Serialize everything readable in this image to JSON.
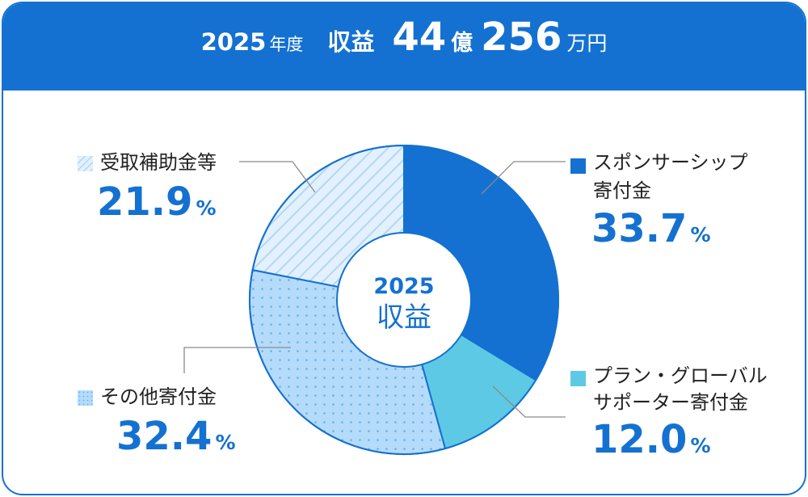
{
  "header": {
    "year": "2025",
    "year_unit": "年度",
    "label": "収益",
    "oku_value": "44",
    "oku_unit": "億",
    "man_value": "256",
    "man_unit": "万円"
  },
  "colors": {
    "brand_blue": "#1471d1",
    "sponsor": "#1471d1",
    "plan_global": "#5ec9e5",
    "other_donation": "#b5dbfb",
    "grants": "#e3f1fd"
  },
  "chart_data": {
    "type": "pie",
    "title": "2025年度 収益 44億256万円",
    "center_label": {
      "year": "2025",
      "label": "収益"
    },
    "unit": "%",
    "slices": [
      {
        "name": "スポンサーシップ寄付金",
        "value": 33.7,
        "color": "#1471d1",
        "pattern": "solid"
      },
      {
        "name": "プラン・グローバルサポーター寄付金",
        "value": 12.0,
        "color": "#5ec9e5",
        "pattern": "solid"
      },
      {
        "name": "その他寄付金",
        "value": 32.4,
        "color": "#b5dbfb",
        "pattern": "dots"
      },
      {
        "name": "受取補助金等",
        "value": 21.9,
        "color": "#e3f1fd",
        "pattern": "stripes"
      }
    ]
  },
  "labels": [
    {
      "line1": "スポンサーシップ",
      "line2": "寄付金",
      "value": "33.7",
      "unit": "%"
    },
    {
      "line1": "プラン・グローバル",
      "line2": "サポーター寄付金",
      "value": "12.0",
      "unit": "%"
    },
    {
      "line1": "その他寄付金",
      "value": "32.4",
      "unit": "%"
    },
    {
      "line1": "受取補助金等",
      "value": "21.9",
      "unit": "%"
    }
  ]
}
